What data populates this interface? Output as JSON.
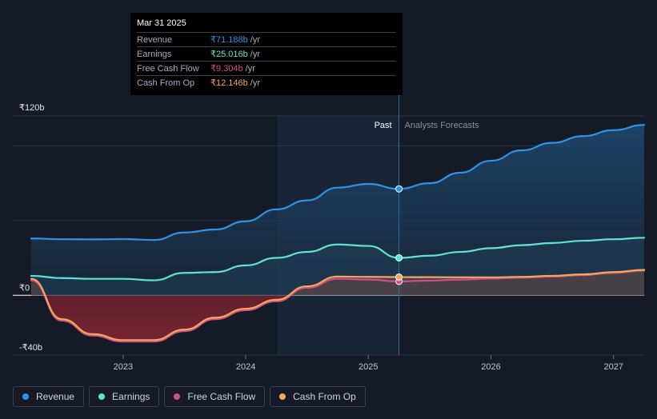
{
  "chart_data": {
    "type": "area",
    "y_tick_labels": [
      "₹120b",
      "₹0",
      "-₹40b"
    ],
    "x_tick_labels": [
      "2023",
      "2024",
      "2025",
      "2026",
      "2027"
    ],
    "x_ticks": [
      2023,
      2024,
      2025,
      2026,
      2027
    ],
    "xlim": [
      2022.1,
      2027.25
    ],
    "ylim": [
      -40,
      120
    ],
    "ylim_plot": [
      -40,
      120
    ],
    "past_label": "Past",
    "forecast_label": "Analysts Forecasts",
    "divider_x": 2025.25,
    "shade_start_x": 2024.25,
    "series": [
      {
        "name": "Revenue",
        "color": "#2e93e6",
        "points": [
          [
            2022.25,
            38.0
          ],
          [
            2022.5,
            37.5
          ],
          [
            2022.75,
            37.4
          ],
          [
            2023.0,
            37.6
          ],
          [
            2023.25,
            37.0
          ],
          [
            2023.5,
            42.0
          ],
          [
            2023.75,
            44.0
          ],
          [
            2024.0,
            49.5
          ],
          [
            2024.25,
            57.5
          ],
          [
            2024.5,
            63.5
          ],
          [
            2024.75,
            72.0
          ],
          [
            2025.0,
            74.5
          ],
          [
            2025.25,
            71.188
          ]
        ],
        "forecast": [
          [
            2025.25,
            71.188
          ],
          [
            2025.5,
            75.0
          ],
          [
            2025.75,
            82.0
          ],
          [
            2026.0,
            90.0
          ],
          [
            2026.25,
            97.0
          ],
          [
            2026.5,
            102.0
          ],
          [
            2026.75,
            106.5
          ],
          [
            2027.0,
            110.5
          ],
          [
            2027.25,
            114.0
          ]
        ]
      },
      {
        "name": "Earnings",
        "color": "#5fe3cf",
        "points": [
          [
            2022.25,
            13.0
          ],
          [
            2022.5,
            11.5
          ],
          [
            2022.75,
            11.0
          ],
          [
            2023.0,
            11.0
          ],
          [
            2023.25,
            10.0
          ],
          [
            2023.5,
            15.0
          ],
          [
            2023.75,
            15.5
          ],
          [
            2024.0,
            20.0
          ],
          [
            2024.25,
            25.0
          ],
          [
            2024.5,
            29.0
          ],
          [
            2024.75,
            34.0
          ],
          [
            2025.0,
            33.0
          ],
          [
            2025.25,
            25.016
          ]
        ],
        "forecast": [
          [
            2025.25,
            25.016
          ],
          [
            2025.5,
            26.5
          ],
          [
            2025.75,
            29.0
          ],
          [
            2026.0,
            31.5
          ],
          [
            2026.25,
            33.5
          ],
          [
            2026.5,
            35.0
          ],
          [
            2026.75,
            36.5
          ],
          [
            2027.0,
            37.5
          ],
          [
            2027.25,
            38.5
          ]
        ]
      },
      {
        "name": "Free Cash Flow",
        "color": "#d14f86",
        "points": [
          [
            2022.25,
            10.0
          ],
          [
            2022.5,
            -17.0
          ],
          [
            2022.75,
            -27.0
          ],
          [
            2023.0,
            -31.0
          ],
          [
            2023.25,
            -31.0
          ],
          [
            2023.5,
            -24.0
          ],
          [
            2023.75,
            -16.0
          ],
          [
            2024.0,
            -10.0
          ],
          [
            2024.25,
            -4.0
          ],
          [
            2024.5,
            5.0
          ],
          [
            2024.75,
            11.0
          ],
          [
            2025.0,
            10.5
          ],
          [
            2025.25,
            9.304
          ]
        ],
        "forecast": [
          [
            2025.25,
            9.304
          ],
          [
            2025.5,
            9.8
          ],
          [
            2025.75,
            10.5
          ],
          [
            2026.0,
            11.2
          ],
          [
            2026.25,
            11.8
          ],
          [
            2026.5,
            12.5
          ],
          [
            2026.75,
            13.5
          ],
          [
            2027.0,
            15.0
          ],
          [
            2027.25,
            16.5
          ]
        ]
      },
      {
        "name": "Cash From Op",
        "color": "#f0a85c",
        "points": [
          [
            2022.25,
            11.0
          ],
          [
            2022.5,
            -16.0
          ],
          [
            2022.75,
            -26.0
          ],
          [
            2023.0,
            -30.0
          ],
          [
            2023.25,
            -30.0
          ],
          [
            2023.5,
            -23.0
          ],
          [
            2023.75,
            -15.0
          ],
          [
            2024.0,
            -9.0
          ],
          [
            2024.25,
            -3.0
          ],
          [
            2024.5,
            6.0
          ],
          [
            2024.75,
            12.5
          ],
          [
            2025.0,
            12.3
          ],
          [
            2025.25,
            12.146
          ]
        ],
        "forecast": [
          [
            2025.25,
            12.146
          ],
          [
            2025.5,
            12.1
          ],
          [
            2025.75,
            12.0
          ],
          [
            2026.0,
            12.0
          ],
          [
            2026.25,
            12.3
          ],
          [
            2026.5,
            13.0
          ],
          [
            2026.75,
            14.0
          ],
          [
            2027.0,
            15.5
          ],
          [
            2027.25,
            17.0
          ]
        ]
      }
    ]
  },
  "tooltip": {
    "date": "Mar 31 2025",
    "rows": [
      {
        "label": "Revenue",
        "value": "₹71.188b",
        "unit": "/yr",
        "color": "#2e93e6"
      },
      {
        "label": "Earnings",
        "value": "₹25.016b",
        "unit": "/yr",
        "color": "#5fe3cf"
      },
      {
        "label": "Free Cash Flow",
        "value": "₹9.304b",
        "unit": "/yr",
        "color": "#d14f86"
      },
      {
        "label": "Cash From Op",
        "value": "₹12.146b",
        "unit": "/yr",
        "color": "#f0a85c"
      }
    ]
  },
  "legend": [
    {
      "label": "Revenue",
      "color": "#2e93e6"
    },
    {
      "label": "Earnings",
      "color": "#5fe3cf"
    },
    {
      "label": "Free Cash Flow",
      "color": "#d14f86"
    },
    {
      "label": "Cash From Op",
      "color": "#f0a85c"
    }
  ]
}
